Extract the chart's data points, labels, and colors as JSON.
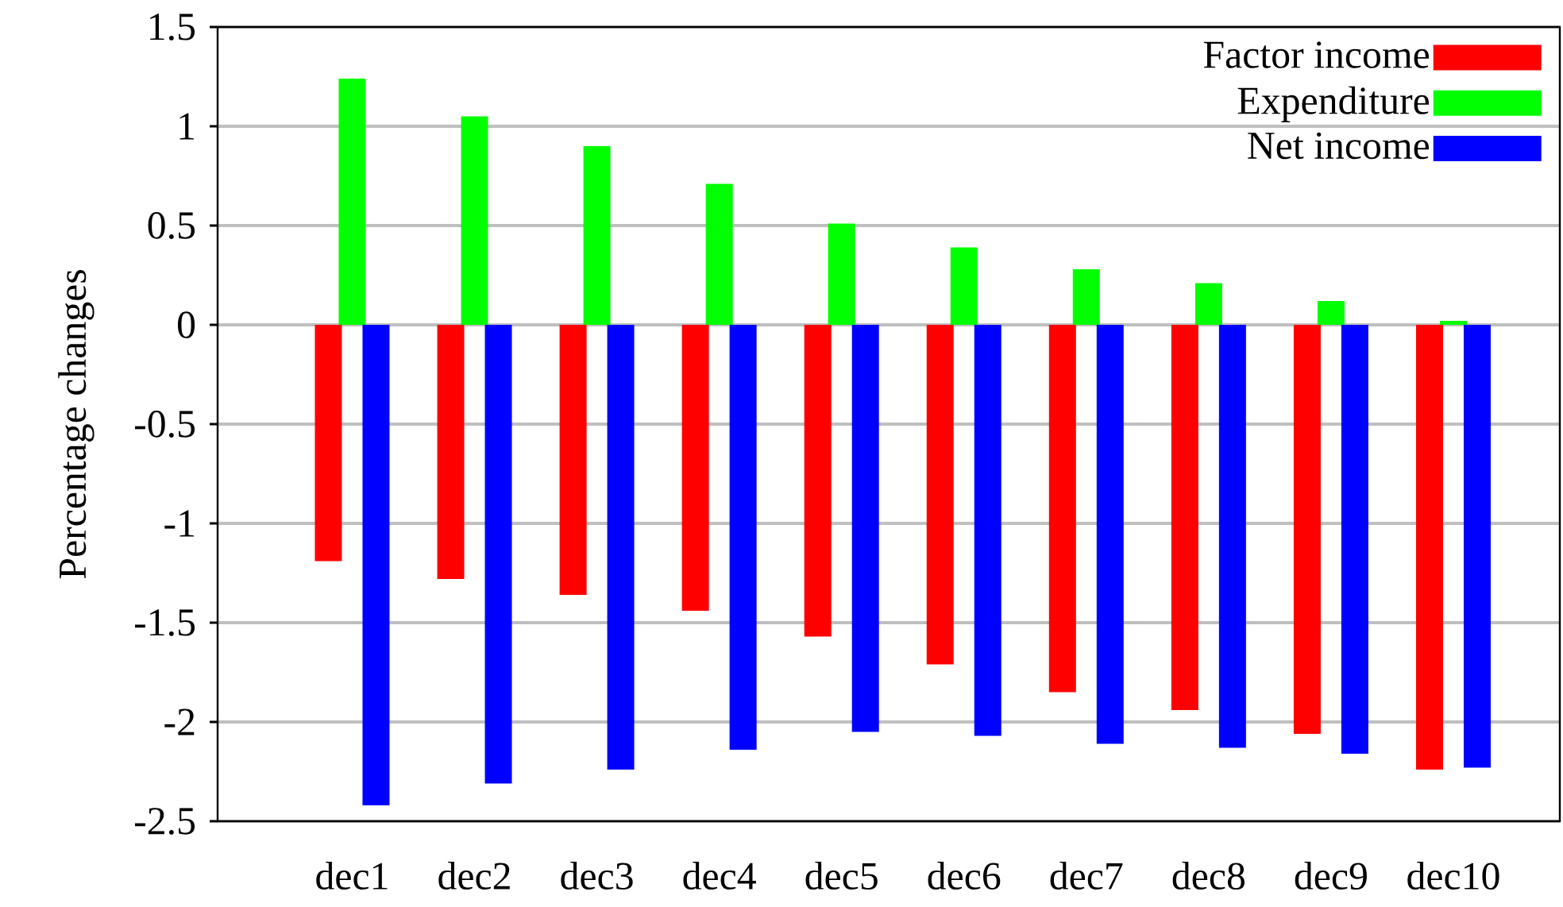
{
  "chart_data": {
    "type": "bar",
    "ylabel": "Percentage changes",
    "categories": [
      "dec1",
      "dec2",
      "dec3",
      "dec4",
      "dec5",
      "dec6",
      "dec7",
      "dec8",
      "dec9",
      "dec10"
    ],
    "series": [
      {
        "name": "Factor income",
        "color": "#ff0000",
        "values": [
          -1.19,
          -1.28,
          -1.36,
          -1.44,
          -1.57,
          -1.71,
          -1.85,
          -1.94,
          -2.06,
          -2.24
        ]
      },
      {
        "name": "Expenditure",
        "color": "#00ff00",
        "values": [
          1.24,
          1.05,
          0.9,
          0.71,
          0.51,
          0.39,
          0.28,
          0.21,
          0.12,
          0.02
        ]
      },
      {
        "name": "Net income",
        "color": "#0000ff",
        "values": [
          -2.42,
          -2.31,
          -2.24,
          -2.14,
          -2.05,
          -2.07,
          -2.11,
          -2.13,
          -2.16,
          -2.23
        ]
      }
    ],
    "ylim": [
      -2.5,
      1.5
    ],
    "yticks": [
      -2.5,
      -2,
      -1.5,
      -1,
      -0.5,
      0,
      0.5,
      1,
      1.5
    ],
    "grid": "y",
    "legend": "top right"
  }
}
